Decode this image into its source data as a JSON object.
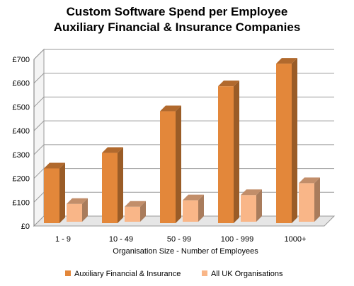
{
  "chart_data": {
    "type": "bar",
    "title_line1": "Custom Software Spend per Employee",
    "title_line2": "Auxiliary Financial & Insurance Companies",
    "categories": [
      "1 - 9",
      "10 - 49",
      "50 - 99",
      "100 - 999",
      "1000+"
    ],
    "series": [
      {
        "name": "Auxiliary Financial & Insurance",
        "values": [
          230,
          295,
          470,
          575,
          670
        ],
        "color": "#e3873a"
      },
      {
        "name": "All UK Organisations",
        "values": [
          75,
          63,
          90,
          112,
          162
        ],
        "color": "#f9b688"
      }
    ],
    "xlabel": "Organisation Size - Number of Employees",
    "ylabel": "",
    "ylim": [
      0,
      700
    ],
    "yticks": [
      "£0",
      "£100",
      "£200",
      "£300",
      "£400",
      "£500",
      "£600",
      "£700"
    ],
    "grid": true,
    "legend_position": "bottom"
  }
}
